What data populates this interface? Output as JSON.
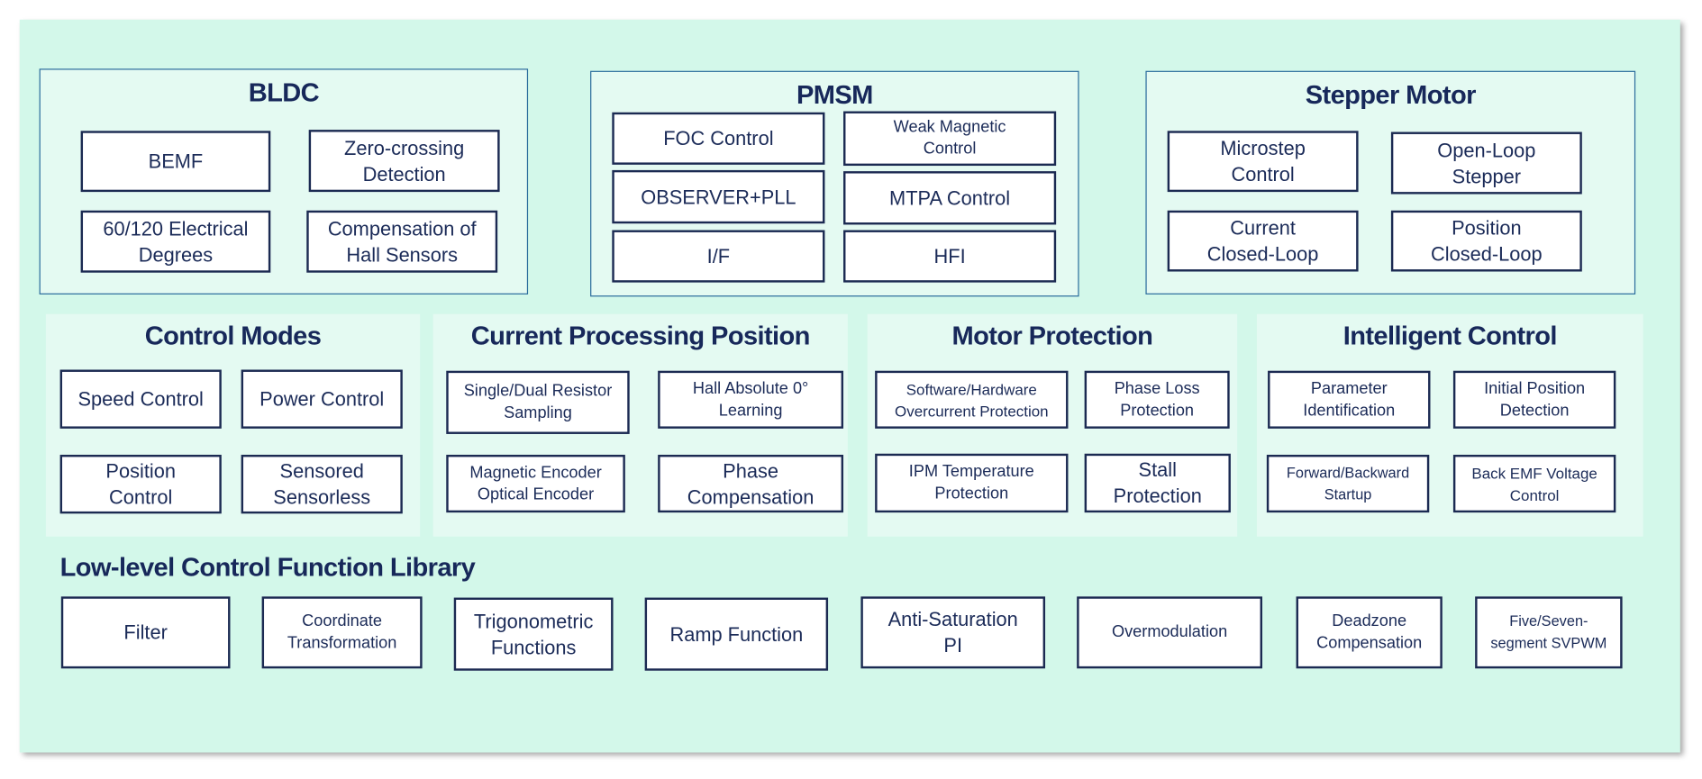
{
  "bldc": {
    "title": "BLDC",
    "items": [
      "BEMF",
      "Zero-crossing\nDetection",
      "60/120 Electrical\nDegrees",
      "Compensation of\nHall Sensors"
    ]
  },
  "pmsm": {
    "title": "PMSM",
    "items": [
      "FOC Control",
      "Weak Magnetic\nControl",
      "OBSERVER+PLL",
      "MTPA Control",
      "I/F",
      "HFI"
    ]
  },
  "stepper": {
    "title": "Stepper Motor",
    "items": [
      "Microstep\nControl",
      "Open-Loop\nStepper",
      "Current\nClosed-Loop",
      "Position\nClosed-Loop"
    ]
  },
  "control_modes": {
    "title": "Control Modes",
    "items": [
      "Speed Control",
      "Power Control",
      "Position\nControl",
      "Sensored\nSensorless"
    ]
  },
  "current_processing": {
    "title": "Current Processing Position",
    "items": [
      "Single/Dual Resistor\nSampling",
      "Hall Absolute 0°\nLearning",
      "Magnetic Encoder\nOptical Encoder",
      "Phase\nCompensation"
    ]
  },
  "motor_protection": {
    "title": "Motor Protection",
    "items": [
      "Software/Hardware\nOvercurrent Protection",
      "Phase Loss\nProtection",
      "IPM Temperature\nProtection",
      "Stall\nProtection"
    ]
  },
  "intelligent": {
    "title": "Intelligent Control",
    "items": [
      "Parameter\nIdentification",
      "Initial Position\nDetection",
      "Forward/Backward\nStartup",
      "Back EMF Voltage\nControl"
    ]
  },
  "library": {
    "title": "Low-level Control Function Library",
    "items": [
      "Filter",
      "Coordinate\nTransformation",
      "Trigonometric\nFunctions",
      "Ramp Function",
      "Anti-Saturation\nPI",
      "Overmodulation",
      "Deadzone\nCompensation",
      "Five/Seven-\nsegment SVPWM"
    ]
  }
}
